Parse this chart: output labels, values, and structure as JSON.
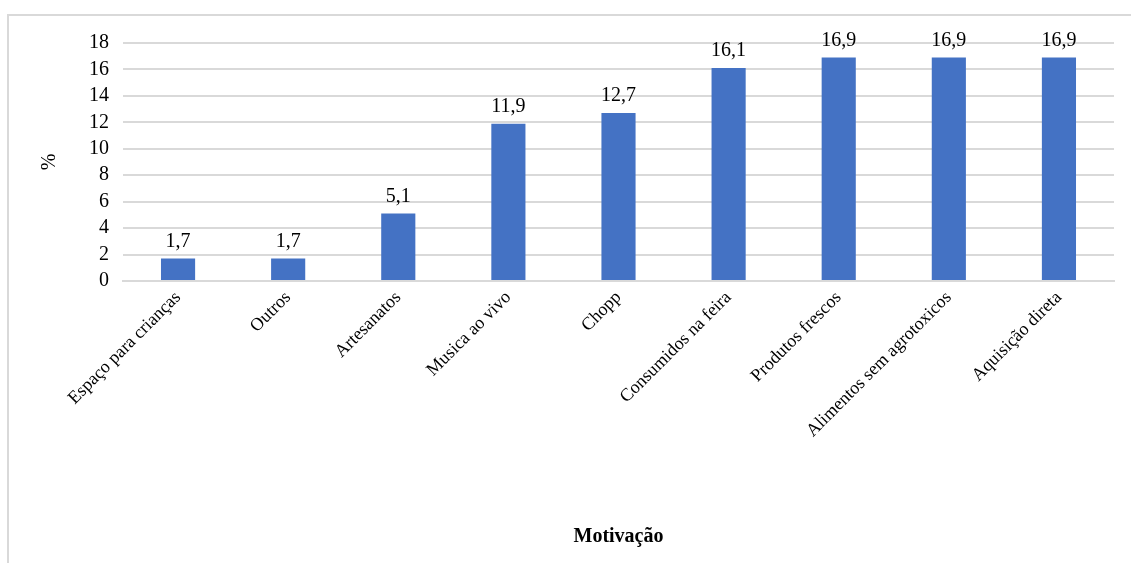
{
  "chart_data": {
    "type": "bar",
    "xlabel": "Motivação",
    "ylabel": "%",
    "categories": [
      "Espaço para crianças",
      "Outros",
      "Artesanatos",
      "Musica ao vivo",
      "Chopp",
      "Consumidos na feira",
      "Produtos frescos",
      "Alimentos sem agrotoxicos",
      "Aquisição direta"
    ],
    "values": [
      1.7,
      1.7,
      5.1,
      11.9,
      12.7,
      16.1,
      16.9,
      16.9,
      16.9
    ],
    "value_labels": [
      "1,7",
      "1,7",
      "5,1",
      "11,9",
      "12,7",
      "16,1",
      "16,9",
      "16,9",
      "16,9"
    ],
    "color": "#4472c4",
    "ylim": [
      0,
      18
    ],
    "yticks": [
      0,
      2,
      4,
      6,
      8,
      10,
      12,
      14,
      16,
      18
    ],
    "grid": "y"
  }
}
